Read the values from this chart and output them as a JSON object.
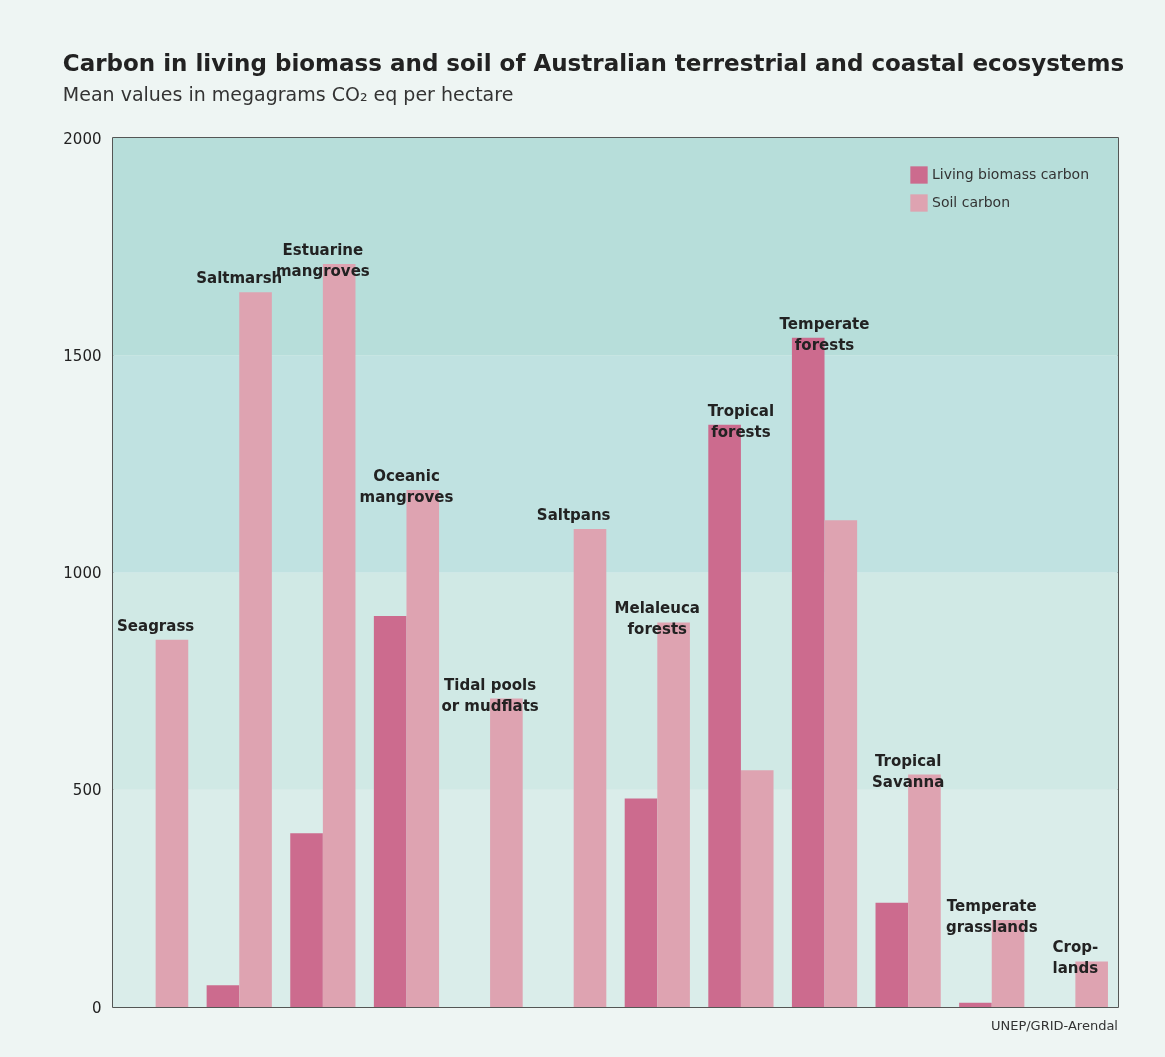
{
  "chart_data": {
    "type": "bar",
    "title": "Carbon in living biomass and soil of Australian terrestrial and coastal ecosystems",
    "subtitle": "Mean values in megagrams CO₂ eq per hectare",
    "categories": [
      "Seagrass",
      "Saltmarsh",
      "Estuarine\nmangroves",
      "Oceanic\nmangroves",
      "Tidal pools\nor mudflats",
      "Saltpans",
      "Melaleuca\nforests",
      "Tropical\nforests",
      "Temperate\nforests",
      "Tropical\nSavanna",
      "Temperate\ngrasslands",
      "Crop-\nlands"
    ],
    "series": [
      {
        "name": "Living biomass carbon",
        "color": "#cc6b8e",
        "values": [
          null,
          50,
          400,
          900,
          null,
          null,
          480,
          1340,
          1540,
          240,
          10,
          null
        ]
      },
      {
        "name": "Soil carbon",
        "color": "#dea3b1",
        "values": [
          845,
          1645,
          1710,
          1190,
          710,
          1100,
          885,
          545,
          1120,
          535,
          200,
          105
        ]
      }
    ],
    "ylim": [
      0,
      2000
    ],
    "yticks": [
      0,
      500,
      1000,
      1500,
      2000
    ],
    "grid": false,
    "legend": "top right",
    "tick_labels": "y",
    "bands": [
      {
        "axis": "y",
        "from": 0,
        "to": 500,
        "color": "#daedea"
      },
      {
        "axis": "y",
        "from": 500,
        "to": 1000,
        "color": "#d0e9e5"
      },
      {
        "axis": "y",
        "from": 1000,
        "to": 1500,
        "color": "#c0e2e1"
      },
      {
        "axis": "y",
        "from": 1500,
        "to": 2000,
        "color": "#b7deda"
      }
    ],
    "annotations": [
      "UNEP/GRID-Arendal"
    ]
  }
}
